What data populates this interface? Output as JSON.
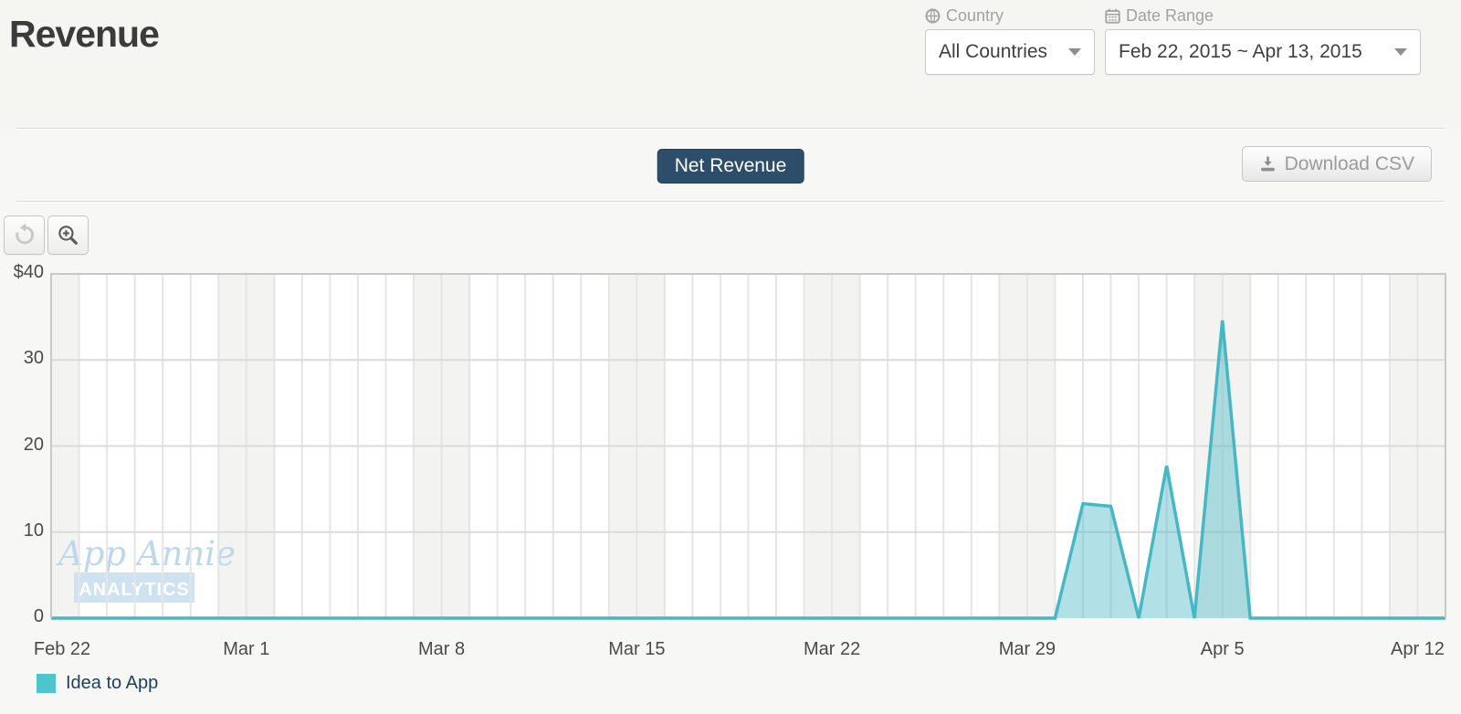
{
  "header": {
    "title": "Revenue",
    "country_label": "Country",
    "country_value": "All Countries",
    "date_range_label": "Date Range",
    "date_range_value": "Feb 22, 2015 ~ Apr 13, 2015"
  },
  "actions": {
    "metric_toggle": "Net Revenue",
    "download_csv": "Download CSV"
  },
  "watermark": {
    "line1": "App Annie",
    "line2": "ANALYTICS"
  },
  "legend": {
    "items": [
      {
        "label": "Idea to App",
        "color": "#4ec5cd"
      }
    ]
  },
  "colors": {
    "accent_teal": "#46b8c4",
    "area_fill": "rgba(70,184,196,0.42)",
    "navy_button": "#2d4e6a",
    "weekend_band": "#f3f3f2",
    "grid_vertical": "#e5e5e4",
    "grid_horizontal": "#dbdbda",
    "plot_border": "#c8c8c7",
    "watermark_blue": "#bdd7eb",
    "watermark_block": "#cfe2f1"
  },
  "chart_data": {
    "type": "area",
    "title": "Net Revenue",
    "currency_unit": "$",
    "interval": "daily",
    "start_date": "2015-02-22",
    "end_date": "2015-04-13",
    "weekend_shading": true,
    "grid": "daily vertical + horizontal every 10",
    "legend_position": "bottom-left",
    "ylim": [
      0,
      40
    ],
    "yticks": [
      {
        "v": 40,
        "label": "$40"
      },
      {
        "v": 30,
        "label": "30"
      },
      {
        "v": 20,
        "label": "20"
      },
      {
        "v": 10,
        "label": "10"
      },
      {
        "v": 0,
        "label": "0"
      }
    ],
    "xticks": [
      {
        "day": 0,
        "label": "Feb 22"
      },
      {
        "day": 7,
        "label": "Mar 1"
      },
      {
        "day": 14,
        "label": "Mar 8"
      },
      {
        "day": 21,
        "label": "Mar 15"
      },
      {
        "day": 28,
        "label": "Mar 22"
      },
      {
        "day": 35,
        "label": "Mar 29"
      },
      {
        "day": 42,
        "label": "Apr 5"
      },
      {
        "day": 49,
        "label": "Apr 12"
      }
    ],
    "series": [
      {
        "name": "Idea to App",
        "color": "#46b8c4",
        "values": [
          0,
          0,
          0,
          0,
          0,
          0,
          0,
          0,
          0,
          0,
          0,
          0,
          0,
          0,
          0,
          0,
          0,
          0,
          0,
          0,
          0,
          0,
          0,
          0,
          0,
          0,
          0,
          0,
          0,
          0,
          0,
          0,
          0,
          0,
          0,
          0,
          0,
          13.3,
          13.0,
          0,
          17.7,
          0,
          34.6,
          0,
          0,
          0,
          0,
          0,
          0,
          0,
          0
        ]
      }
    ],
    "nonzero_points": [
      {
        "date": "2015-03-31",
        "value": 13.3
      },
      {
        "date": "2015-04-01",
        "value": 13.0
      },
      {
        "date": "2015-04-03",
        "value": 17.7
      },
      {
        "date": "2015-04-05",
        "value": 34.6
      }
    ]
  }
}
